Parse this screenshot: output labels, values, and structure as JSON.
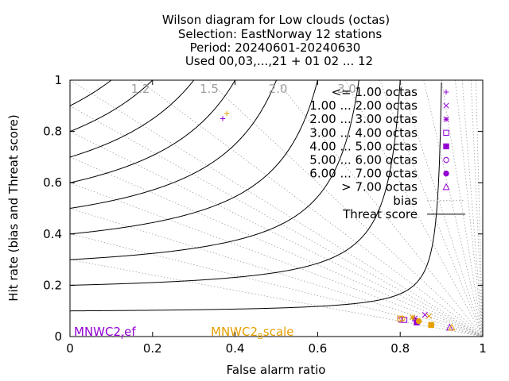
{
  "title_lines": [
    "Wilson diagram  for Low clouds (octas)",
    "Selection: EastNorway     12 stations",
    "Period: 20240601-20240630",
    "Used 00,03,...,21 + 01 02 ... 12"
  ],
  "chart_data": {
    "type": "scatter",
    "xlabel": "False alarm ratio",
    "ylabel": "Hit rate (bias and Threat score)",
    "xlim": [
      0,
      1
    ],
    "ylim": [
      0,
      1
    ],
    "x_ticks": [
      "0",
      "0.2",
      "0.4",
      "0.6",
      "0.8",
      "1"
    ],
    "y_ticks": [
      "0",
      "0.2",
      "0.4",
      "0.6",
      "0.8",
      "1"
    ],
    "grid": false,
    "legend_position": "top-right",
    "bias_labels": [
      "1.2",
      "1.5",
      "2.0",
      "3.0"
    ],
    "bias_values": [
      0.3,
      0.4,
      0.5,
      0.6,
      0.7,
      0.8,
      0.9,
      1.0,
      1.2,
      1.5,
      2.0,
      3.0,
      4.0,
      5.0,
      7.0,
      10.0,
      15.0,
      20.0,
      35.0,
      60.0
    ],
    "threat_score_values": [
      0.1,
      0.2,
      0.3,
      0.4,
      0.5,
      0.6,
      0.7,
      0.8,
      0.9
    ],
    "legend": {
      "series": [
        "<= 1.00 octas",
        "1.00 ... 2.00 octas",
        "2.00 ... 3.00 octas",
        "3.00 ... 4.00 octas",
        "4.00 ... 5.00 octas",
        "5.00 ... 6.00 octas",
        "6.00 ... 7.00 octas",
        "> 7.00 octas"
      ],
      "bias": "bias",
      "threat": "Threat score"
    },
    "models": [
      {
        "name": "MNWC2_ref",
        "label_main": "MNWC2",
        "label_sub": "r",
        "label_tail": "ef",
        "color": "#9400d3",
        "points": [
          {
            "x": 0.37,
            "y": 0.85
          },
          {
            "x": 0.86,
            "y": 0.085
          },
          {
            "x": 0.835,
            "y": 0.07
          },
          {
            "x": 0.81,
            "y": 0.065
          },
          {
            "x": 0.84,
            "y": 0.055
          },
          {
            "x": 0.8,
            "y": 0.065
          },
          {
            "x": 0.84,
            "y": 0.06
          },
          {
            "x": 0.92,
            "y": 0.035
          }
        ]
      },
      {
        "name": "MNWC2_Bscale",
        "label_main": "MNWC2",
        "label_sub": "B",
        "label_tail": "scale",
        "color": "#e69f00",
        "points": [
          {
            "x": 0.38,
            "y": 0.87
          },
          {
            "x": 0.87,
            "y": 0.08
          },
          {
            "x": 0.83,
            "y": 0.075
          },
          {
            "x": 0.8,
            "y": 0.07
          },
          {
            "x": 0.875,
            "y": 0.045
          },
          {
            "x": 0.805,
            "y": 0.07
          },
          {
            "x": 0.845,
            "y": 0.06
          },
          {
            "x": 0.925,
            "y": 0.035
          }
        ]
      }
    ]
  },
  "colors": {
    "axis": "#000000",
    "threat_line": "#000000",
    "bias_line": "#a0a0a0",
    "bias_label": "#a0a0a0"
  }
}
